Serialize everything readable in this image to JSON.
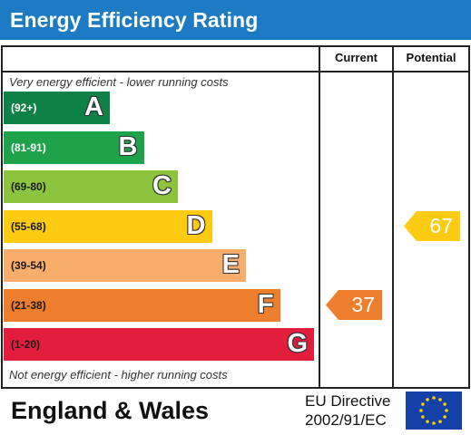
{
  "header": {
    "title": "Energy Efficiency Rating"
  },
  "columns": {
    "current": "Current",
    "potential": "Potential"
  },
  "notes": {
    "top": "Very energy efficient - lower running costs",
    "bottom": "Not energy efficient - higher running costs"
  },
  "chart_data": {
    "type": "bar",
    "title": "Energy Efficiency Rating",
    "categories": [
      "A",
      "B",
      "C",
      "D",
      "E",
      "F",
      "G"
    ],
    "bands": [
      {
        "letter": "A",
        "range": "(92+)",
        "min": 92,
        "max": 100,
        "color": "#0e8146",
        "range_color": "#ffffff"
      },
      {
        "letter": "B",
        "range": "(81-91)",
        "min": 81,
        "max": 91,
        "color": "#1ea24a",
        "range_color": "#ffffff"
      },
      {
        "letter": "C",
        "range": "(69-80)",
        "min": 69,
        "max": 80,
        "color": "#8cc43f",
        "range_color": "#1a1a1a"
      },
      {
        "letter": "D",
        "range": "(55-68)",
        "min": 55,
        "max": 68,
        "color": "#fdcb12",
        "range_color": "#1a1a1a"
      },
      {
        "letter": "E",
        "range": "(39-54)",
        "min": 39,
        "max": 54,
        "color": "#f8ad6a",
        "range_color": "#1a1a1a"
      },
      {
        "letter": "F",
        "range": "(21-38)",
        "min": 21,
        "max": 38,
        "color": "#ee7d2c",
        "range_color": "#1a1a1a"
      },
      {
        "letter": "G",
        "range": "(1-20)",
        "min": 1,
        "max": 20,
        "color": "#e31d3c",
        "range_color": "#1a1a1a"
      }
    ],
    "series": [
      {
        "name": "Current",
        "value": 37,
        "band": "F",
        "color": "#ee7d2c"
      },
      {
        "name": "Potential",
        "value": 67,
        "band": "D",
        "color": "#fdcb12"
      }
    ]
  },
  "footer": {
    "region": "England & Wales",
    "directive_line1": "EU Directive",
    "directive_line2": "2002/91/EC",
    "flag_color": "#1540a8",
    "star_color": "#ffcc00"
  }
}
